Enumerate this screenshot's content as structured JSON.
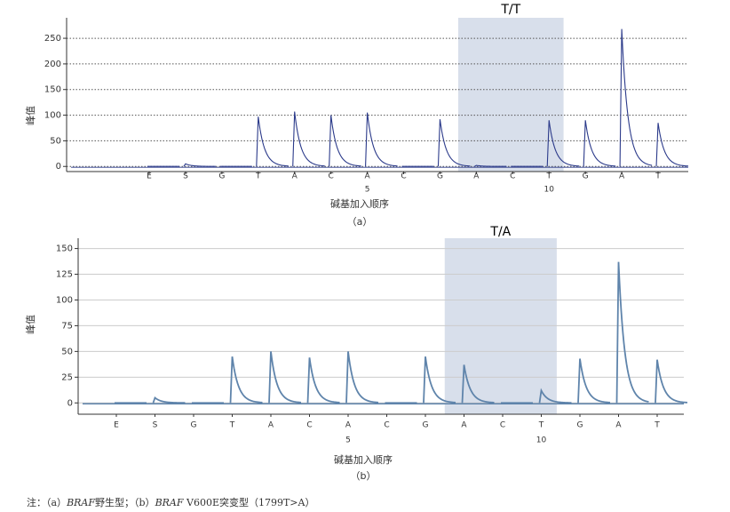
{
  "chart_data": [
    {
      "type": "peak",
      "y_label": "峰值",
      "x_label": "碱基加入顺序",
      "caption": "（a）",
      "categories": [
        "E",
        "S",
        "G",
        "T",
        "A",
        "C",
        "A",
        "C",
        "G",
        "A",
        "C",
        "T",
        "G",
        "A",
        "T"
      ],
      "positions": [
        null,
        null,
        null,
        null,
        null,
        null,
        5,
        null,
        null,
        null,
        null,
        10,
        null,
        null,
        null
      ],
      "values": [
        0,
        5,
        0,
        97,
        107,
        100,
        105,
        0,
        92,
        2,
        0,
        90,
        90,
        268,
        85
      ],
      "color": "#2b3a8a",
      "ylim": [
        -10,
        290
      ],
      "yticks": [
        0,
        50,
        100,
        150,
        200,
        250
      ],
      "grid": "dotted",
      "highlight": {
        "label": "T/T",
        "from": 9,
        "to": 11,
        "color": "#d8dfeb"
      }
    },
    {
      "type": "peak",
      "y_label": "峰值",
      "x_label": "碱基加入顺序",
      "caption": "（b）",
      "categories": [
        "E",
        "S",
        "G",
        "T",
        "A",
        "C",
        "A",
        "C",
        "G",
        "A",
        "C",
        "T",
        "G",
        "A",
        "T"
      ],
      "positions": [
        null,
        null,
        null,
        null,
        null,
        null,
        5,
        null,
        null,
        null,
        null,
        10,
        null,
        null,
        null
      ],
      "values": [
        0,
        5,
        0,
        45,
        50,
        44,
        50,
        0,
        45,
        37,
        0,
        12,
        43,
        137,
        42
      ],
      "color": "#5f84ab",
      "ylim": [
        -11,
        160
      ],
      "yticks": [
        0,
        25,
        50,
        75,
        100,
        125,
        150
      ],
      "grid": "solid",
      "highlight": {
        "label": "T/A",
        "from": 9,
        "to": 11,
        "color": "#d8dfeb"
      }
    }
  ],
  "note": [
    "注：（a）",
    "BRAF",
    "野生型；（b）",
    "BRAF",
    " V600E突变型（1799T>A）"
  ]
}
